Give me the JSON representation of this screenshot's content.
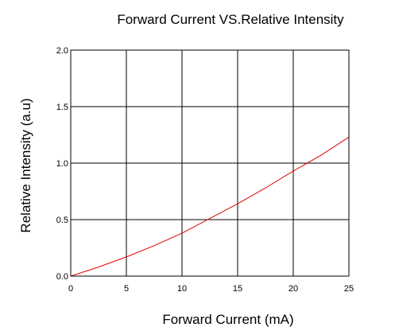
{
  "chart_data": {
    "type": "line",
    "title": "Forward Current VS.Relative Intensity",
    "xlabel": "Forward Current (mA)",
    "ylabel": "Relative Intensity (a.u)",
    "xlim": [
      0,
      25
    ],
    "ylim": [
      0,
      2.0
    ],
    "x_ticks": [
      "0",
      "5",
      "10",
      "15",
      "20",
      "25"
    ],
    "y_ticks": [
      "0.0",
      "0.5",
      "1.0",
      "1.5",
      "2.0"
    ],
    "x_tick_values": [
      0,
      5,
      10,
      15,
      20,
      25
    ],
    "y_tick_values": [
      0,
      0.5,
      1.0,
      1.5,
      2.0
    ],
    "grid": true,
    "series": [
      {
        "x": [
          0,
          2.5,
          5,
          7.5,
          10,
          12.5,
          15,
          17.5,
          20,
          22.5,
          25
        ],
        "y": [
          0,
          0.08,
          0.17,
          0.27,
          0.38,
          0.51,
          0.64,
          0.78,
          0.93,
          1.07,
          1.23
        ]
      }
    ],
    "colors": {
      "series": "#e00000",
      "grid": "#000000"
    }
  }
}
